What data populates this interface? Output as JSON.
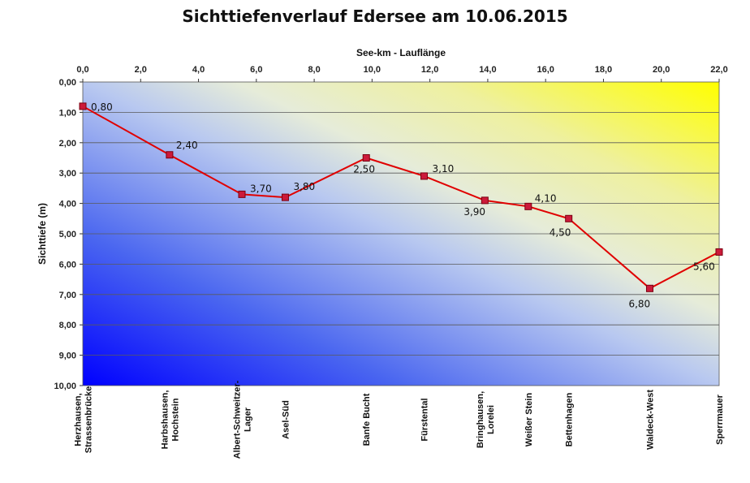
{
  "chart_data": {
    "type": "line",
    "title": "Sichttiefenverlauf Edersee am 10.06.2015",
    "xlabel": "See-km - Lauflänge",
    "ylabel": "Sichttiefe (m)",
    "xlim": [
      0,
      22
    ],
    "ylim": [
      0,
      10
    ],
    "y_inverted": true,
    "x_axis_position": "top",
    "x_ticks": [
      "0,0",
      "2,0",
      "4,0",
      "6,0",
      "8,0",
      "10,0",
      "12,0",
      "14,0",
      "16,0",
      "18,0",
      "20,0",
      "22,0"
    ],
    "y_ticks": [
      "0,00",
      "1,00",
      "2,00",
      "3,00",
      "4,00",
      "5,00",
      "6,00",
      "7,00",
      "8,00",
      "9,00",
      "10,00"
    ],
    "grid": "horizontal",
    "series": [
      {
        "color": "#e00000",
        "marker_color": "#cc1a3a",
        "x": [
          0.0,
          3.0,
          5.5,
          7.0,
          9.8,
          11.8,
          13.9,
          15.4,
          16.8,
          19.6,
          22.0
        ],
        "y": [
          0.8,
          2.4,
          3.7,
          3.8,
          2.5,
          3.1,
          3.9,
          4.1,
          4.5,
          6.8,
          5.6
        ],
        "labels": [
          "0,80",
          "2,40",
          "3,70",
          "3,80",
          "2,50",
          "3,10",
          "3,90",
          "4,10",
          "4,50",
          "6,80",
          "5,60"
        ]
      }
    ],
    "stations": [
      {
        "x": 0.0,
        "lines": [
          "Herzhausen,",
          "Strassenbrücke"
        ]
      },
      {
        "x": 3.0,
        "lines": [
          "Harbshausen,",
          "Hochstein"
        ]
      },
      {
        "x": 5.5,
        "lines": [
          "Albert-Schweitzer-",
          "Lager"
        ]
      },
      {
        "x": 7.0,
        "lines": [
          "Asel-Süd"
        ]
      },
      {
        "x": 9.8,
        "lines": [
          "Banfe Bucht"
        ]
      },
      {
        "x": 11.8,
        "lines": [
          "Fürstental"
        ]
      },
      {
        "x": 13.9,
        "lines": [
          "Bringhausen,",
          "Lorelei"
        ]
      },
      {
        "x": 15.4,
        "lines": [
          "Weißer Stein"
        ]
      },
      {
        "x": 16.8,
        "lines": [
          "Bettenhagen"
        ]
      },
      {
        "x": 19.6,
        "lines": [
          "Waldeck-West"
        ]
      },
      {
        "x": 22.0,
        "lines": [
          "Sperrmauer"
        ]
      }
    ],
    "background_colors": {
      "top_right": "#ffff00",
      "bottom_left": "#0000ff"
    }
  }
}
